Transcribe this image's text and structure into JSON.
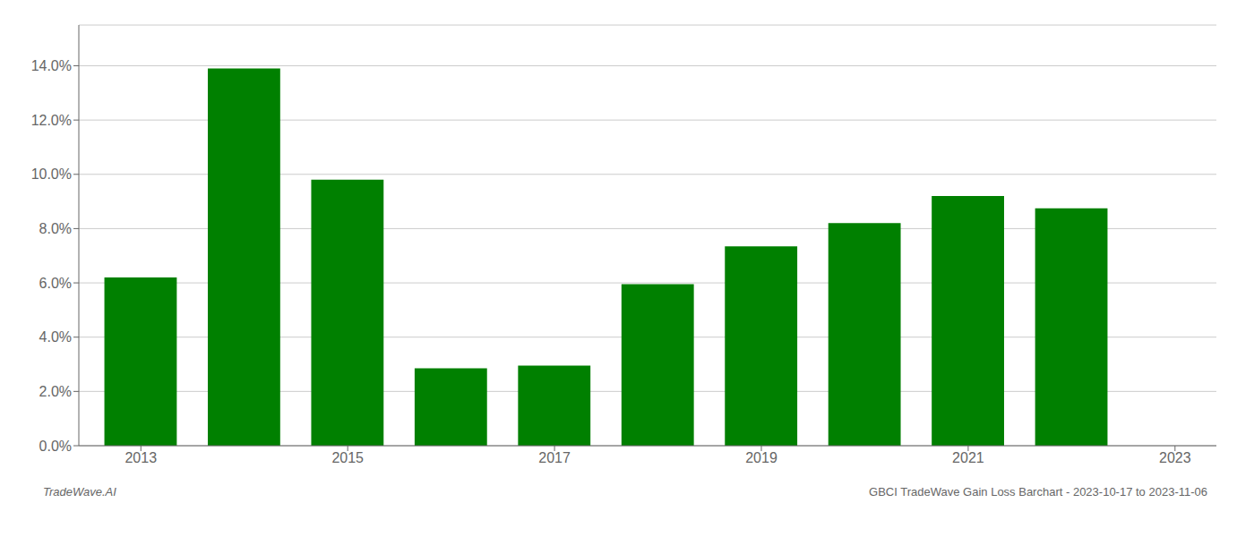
{
  "chart_data": {
    "type": "bar",
    "x": [
      2013,
      2014,
      2015,
      2016,
      2017,
      2018,
      2019,
      2020,
      2021,
      2022
    ],
    "values": [
      0.062,
      0.139,
      0.098,
      0.0285,
      0.0295,
      0.0595,
      0.0735,
      0.082,
      0.092,
      0.0875
    ],
    "color": "#008000",
    "xlim": [
      2012.4,
      2023.4
    ],
    "xticks": [
      2013,
      2015,
      2017,
      2019,
      2021,
      2023
    ],
    "ylim": [
      0,
      0.155
    ],
    "yticks": [
      {
        "value": 0.0,
        "label": "0.0%"
      },
      {
        "value": 0.02,
        "label": "2.0%"
      },
      {
        "value": 0.04,
        "label": "4.0%"
      },
      {
        "value": 0.06,
        "label": "6.0%"
      },
      {
        "value": 0.08,
        "label": "8.0%"
      },
      {
        "value": 0.1,
        "label": "10.0%"
      },
      {
        "value": 0.12,
        "label": "12.0%"
      },
      {
        "value": 0.14,
        "label": "14.0%"
      }
    ],
    "grid": true,
    "annotations": [
      "TradeWave.AI",
      "GBCI TradeWave Gain Loss Barchart - 2023-10-17 to 2023-11-06"
    ]
  }
}
